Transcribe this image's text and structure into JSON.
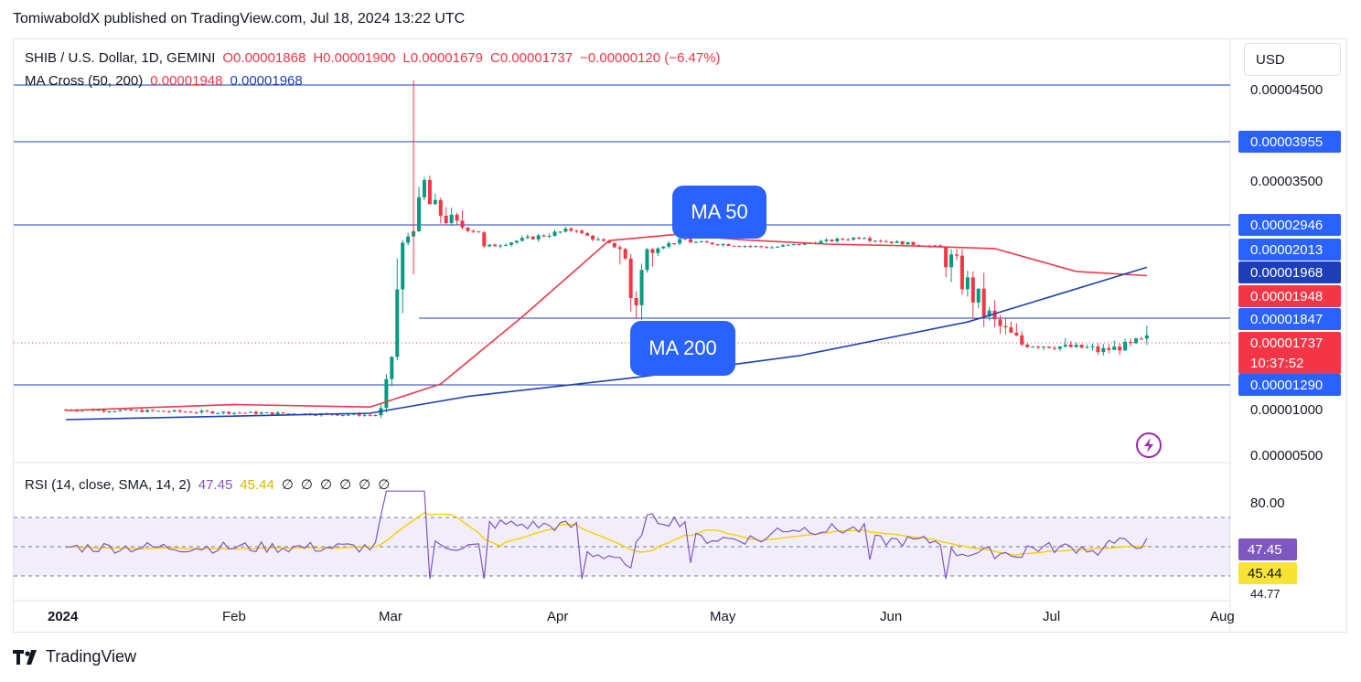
{
  "header": {
    "credit": "TomiwaboldX published on TradingView.com, Jul 18, 2024 13:22 UTC"
  },
  "legend": {
    "symbol": "SHIB / U.S. Dollar, 1D, GEMINI",
    "open": "O0.00001868",
    "high": "H0.00001900",
    "low": "L0.00001679",
    "close": "C0.00001737",
    "change": "−0.00000120 (−6.47%)",
    "ma_label": "MA Cross (50, 200)",
    "ma50_value": "0.00001948",
    "ma200_value": "0.00001968",
    "rsi_label": "RSI (14, close, SMA, 14, 2)",
    "rsi_value": "47.45",
    "rsi_sma_value": "45.44",
    "rsi_extras": [
      "∅",
      "∅",
      "∅",
      "∅",
      "∅",
      "∅"
    ]
  },
  "toolbar": {
    "currency_button": "USD"
  },
  "annotations": {
    "ma50": "MA 50",
    "ma200": "MA 200"
  },
  "price_axis": {
    "ticks": [
      "0.00004500",
      "0.00003500",
      "0.00001000",
      "0.00000500"
    ],
    "labels": [
      {
        "value": "0.00003955",
        "color": "#2962ff"
      },
      {
        "value": "0.00002946",
        "color": "#2962ff"
      },
      {
        "value": "0.00002013",
        "color": "#2962ff"
      },
      {
        "value": "0.00001968",
        "color": "#1e3fb8"
      },
      {
        "value": "0.00001948",
        "color": "#f23645"
      },
      {
        "value": "0.00001847",
        "color": "#2962ff"
      },
      {
        "value": "0.00001737",
        "color": "#f23645"
      },
      {
        "value": "0.00001290",
        "color": "#2962ff"
      }
    ],
    "countdown": "10:37:52"
  },
  "rsi_axis": {
    "ticks": [
      "80.00"
    ],
    "labels": [
      {
        "value": "47.45",
        "color": "#7e57c2"
      },
      {
        "value": "45.44",
        "color": "#f7e333"
      }
    ],
    "partial": "44.77"
  },
  "time_axis": [
    "2024",
    "Feb",
    "Mar",
    "Apr",
    "May",
    "Jun",
    "Jul",
    "Aug"
  ],
  "footer": {
    "brand": "TradingView"
  },
  "chart_data": {
    "type": "candlestick",
    "symbol": "SHIB / U.S. Dollar",
    "interval": "1D",
    "horizontal_levels": [
      4.5e-05,
      3.955e-05,
      2.946e-05,
      1.847e-05,
      1.29e-05
    ],
    "series": [
      {
        "name": "MA 50",
        "color": "#f23645",
        "x": [
          "2024-01-01",
          "2024-02-01",
          "2024-02-26",
          "2024-03-10",
          "2024-03-25",
          "2024-04-10",
          "2024-04-22",
          "2024-05-05",
          "2024-05-20",
          "2024-06-05",
          "2024-06-20",
          "2024-07-05",
          "2024-07-18"
        ],
        "values": [
          9.8e-06,
          1.05e-05,
          1.02e-05,
          1.3e-05,
          1.85e-05,
          2.35e-05,
          2.58e-05,
          2.38e-05,
          2.22e-05,
          2.15e-05,
          2.05e-05,
          1.96e-05,
          1.95e-05
        ]
      },
      {
        "name": "MA 200",
        "color": "#1e3fb8",
        "x": [
          "2024-01-01",
          "2024-02-26",
          "2024-03-15",
          "2024-04-15",
          "2024-05-15",
          "2024-06-15",
          "2024-07-18"
        ],
        "values": [
          8.8e-06,
          9.5e-06,
          1.15e-05,
          1.37e-05,
          1.6e-05,
          1.83e-05,
          1.97e-05
        ]
      }
    ],
    "rsi": {
      "ylim": [
        25,
        90
      ],
      "bands": [
        70,
        50,
        30
      ],
      "last_rsi": 47.45,
      "last_sma": 45.44
    }
  }
}
